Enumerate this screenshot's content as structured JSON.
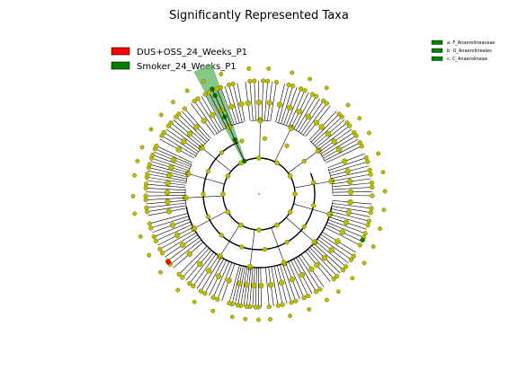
{
  "figure": {
    "title": "Significantly Represented Taxa"
  },
  "legend": [
    {
      "label": "DUS+OSS_24_Weeks_P1",
      "color": "#ff0000"
    },
    {
      "label": "Smoker_24_Weeks_P1",
      "color": "#008000"
    }
  ],
  "clade_key": [
    {
      "label": "a: F_Anaerolineaceae",
      "color": "#008000"
    },
    {
      "label": "b: O_Anaerolineales",
      "color": "#008000"
    },
    {
      "label": "c: C_Anaerolineae",
      "color": "#008000"
    }
  ],
  "colors": {
    "node_default": "#bcbc00",
    "group_dus_oss": "#ff0000",
    "group_smoker": "#008000",
    "clade_shade": "#5db35d"
  },
  "cladogram": {
    "center": [
      288,
      216
    ],
    "ring_radii": [
      40,
      62,
      82,
      102,
      122
    ],
    "ring_arcs": [
      {
        "level": 1,
        "start": 0,
        "end": 360
      },
      {
        "level": 2,
        "start": 68,
        "end": 338
      },
      {
        "level": 3,
        "start": 100,
        "end": 260
      }
    ],
    "groups": [
      {
        "start": -84,
        "end": -64,
        "count": 12
      },
      {
        "start": -62,
        "end": -40,
        "count": 11
      },
      {
        "start": -38,
        "end": -10,
        "count": 13
      },
      {
        "start": -8,
        "end": 10,
        "count": 8
      },
      {
        "start": 12,
        "end": 40,
        "count": 13
      },
      {
        "start": 42,
        "end": 66,
        "count": 12
      },
      {
        "start": 68,
        "end": 92,
        "count": 11
      },
      {
        "start": 94,
        "end": 118,
        "count": 11
      },
      {
        "start": 120,
        "end": 142,
        "count": 10
      },
      {
        "start": 144,
        "end": 176,
        "count": 14
      },
      {
        "start": 178,
        "end": 196,
        "count": 12
      },
      {
        "start": 198,
        "end": 226,
        "count": 12
      },
      {
        "start": 228,
        "end": 256,
        "count": 12
      },
      {
        "start": 258,
        "end": 276,
        "count": 9
      }
    ],
    "highlight_smoker": {
      "angle": -24
    },
    "highlight_smoker_leaf": {
      "angle": 114
    },
    "highlight_dus_leaf": {
      "angle": -127
    }
  }
}
